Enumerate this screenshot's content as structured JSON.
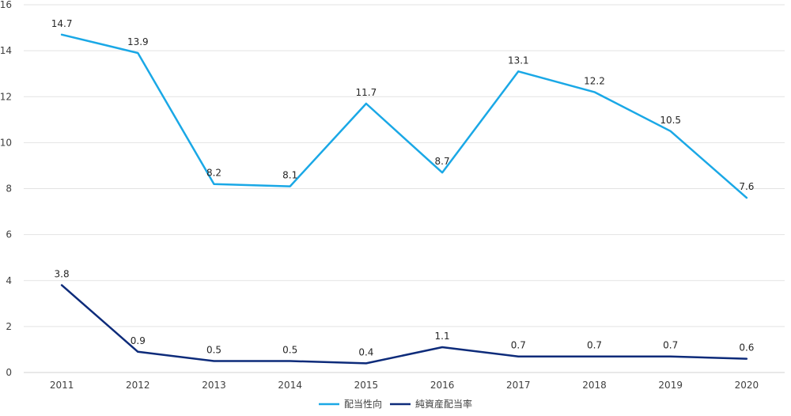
{
  "chart_data": {
    "type": "line",
    "title": "",
    "xlabel": "",
    "ylabel": "",
    "categories": [
      "2011",
      "2012",
      "2013",
      "2014",
      "2015",
      "2016",
      "2017",
      "2018",
      "2019",
      "2020"
    ],
    "ylim": [
      0,
      16
    ],
    "yticks": [
      0,
      2,
      4,
      6,
      8,
      10,
      12,
      14,
      16
    ],
    "grid": true,
    "legend_position": "bottom",
    "series": [
      {
        "name": "配当性向",
        "color": "#1aa8e6",
        "values": [
          14.7,
          13.9,
          8.2,
          8.1,
          11.7,
          8.7,
          13.1,
          12.2,
          10.5,
          7.6
        ],
        "labels": [
          "14.7",
          "13.9",
          "8.2",
          "8.1",
          "11.7",
          "8.7",
          "13.1",
          "12.2",
          "10.5",
          "7.6"
        ]
      },
      {
        "name": "純資産配当率",
        "color": "#0d2b7a",
        "values": [
          3.8,
          0.9,
          0.5,
          0.5,
          0.4,
          1.1,
          0.7,
          0.7,
          0.7,
          0.6
        ],
        "labels": [
          "3.8",
          "0.9",
          "0.5",
          "0.5",
          "0.4",
          "1.1",
          "0.7",
          "0.7",
          "0.7",
          "0.6"
        ]
      }
    ]
  }
}
